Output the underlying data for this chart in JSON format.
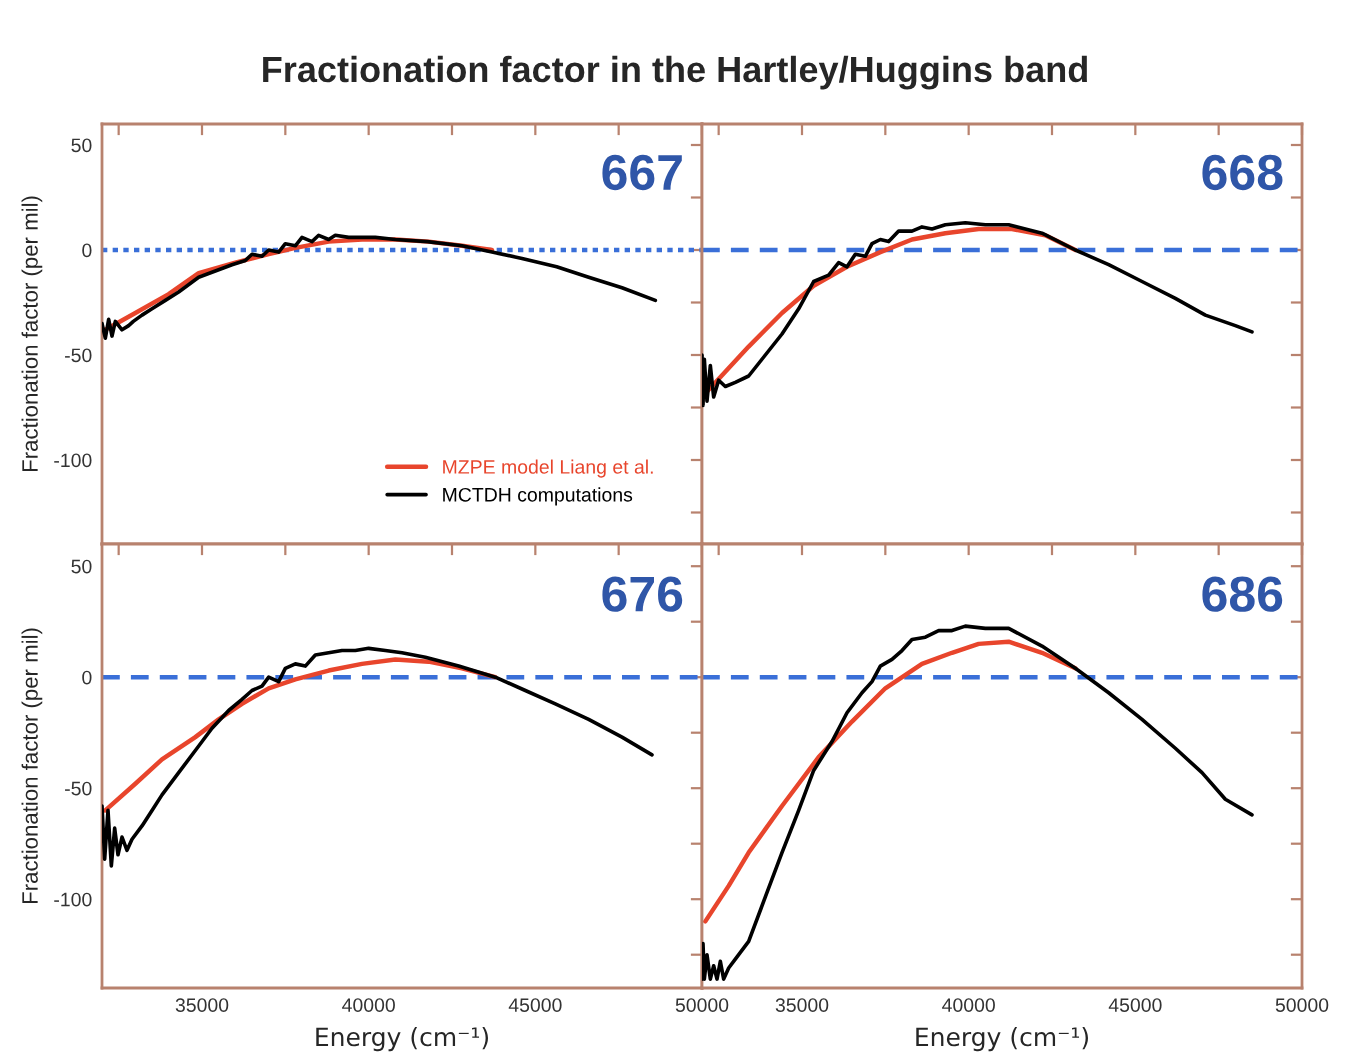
{
  "chart_data": [
    {
      "type": "line",
      "title": "Fractionation factor in the Hartley/Huggins band",
      "ylabel": "Fractionation factor (per mil)",
      "annotations": [
        "667"
      ],
      "legend": "bottom right",
      "tick_labels": "y",
      "xlim": [
        32000,
        50000
      ],
      "ylim": [
        -140,
        60
      ],
      "xticks": [
        {
          "value": 32500,
          "label": null
        },
        {
          "value": 35000,
          "label": null
        },
        {
          "value": 37500,
          "label": null
        },
        {
          "value": 40000,
          "label": null
        },
        {
          "value": 42500,
          "label": null
        },
        {
          "value": 45000,
          "label": null
        },
        {
          "value": 47500,
          "label": null
        },
        {
          "value": 50000,
          "label": null
        }
      ],
      "yticks": [
        {
          "value": -125,
          "label": null
        },
        -100,
        {
          "value": -75,
          "label": null
        },
        -50,
        {
          "value": -25,
          "label": null
        },
        0,
        {
          "value": 25,
          "label": null
        },
        50
      ],
      "ref_lines": [
        {
          "axis": "y",
          "value": 0,
          "color": "#3a6fd8",
          "line_style": "dotted"
        }
      ],
      "series": [
        {
          "name": "MZPE model Liang et al.",
          "color": "#e8452c",
          "x": [
            32100,
            33000,
            34000,
            34900,
            36000,
            37000,
            37800,
            38800,
            39800,
            40800,
            41800,
            42800,
            43700
          ],
          "values": [
            -38,
            -30,
            -21,
            -11,
            -6,
            -2,
            1,
            4,
            5,
            5,
            4,
            2,
            0
          ]
        },
        {
          "name": "MCTDH computations",
          "color": "#000000",
          "x": [
            32000,
            32100,
            32200,
            32300,
            32400,
            32600,
            32800,
            32940,
            33200,
            33500,
            33900,
            34300,
            34900,
            35400,
            35900,
            36300,
            36500,
            36800,
            37000,
            37300,
            37500,
            37800,
            38000,
            38300,
            38500,
            38800,
            39000,
            39400,
            39760,
            40200,
            40800,
            41760,
            42800,
            43700,
            44600,
            45640,
            46600,
            47600,
            48600
          ],
          "values": [
            -35,
            -42,
            -33,
            -41,
            -34,
            -38,
            -36,
            -34,
            -31,
            -28,
            -24,
            -20,
            -13,
            -10,
            -7,
            -5,
            -2,
            -3,
            0,
            -1,
            3,
            2,
            6,
            4,
            7,
            5,
            7,
            6,
            6,
            6,
            5,
            4,
            2,
            -1,
            -4,
            -8,
            -13,
            -18,
            -24
          ]
        }
      ]
    },
    {
      "type": "line",
      "annotations": [
        "668"
      ],
      "tick_labels": false,
      "xlim": [
        32000,
        50000
      ],
      "ylim": [
        -140,
        60
      ],
      "xticks": [
        {
          "value": 32500,
          "label": null
        },
        {
          "value": 35000,
          "label": null
        },
        {
          "value": 37500,
          "label": null
        },
        {
          "value": 40000,
          "label": null
        },
        {
          "value": 42500,
          "label": null
        },
        {
          "value": 45000,
          "label": null
        },
        {
          "value": 47500,
          "label": null
        },
        {
          "value": 50000,
          "label": null
        }
      ],
      "yticks": [
        {
          "value": -125,
          "label": null
        },
        {
          "value": -100,
          "label": null
        },
        {
          "value": -75,
          "label": null
        },
        {
          "value": -50,
          "label": null
        },
        {
          "value": -25,
          "label": null
        },
        {
          "value": 0,
          "label": null
        },
        {
          "value": 25,
          "label": null
        },
        {
          "value": 50,
          "label": null
        }
      ],
      "ref_lines": [
        {
          "axis": "y",
          "value": 0,
          "color": "#3a6fd8",
          "line_style": "dashed"
        }
      ],
      "series": [
        {
          "color": "#e8452c",
          "x": [
            32000,
            32700,
            33400,
            34400,
            35350,
            36350,
            37350,
            38300,
            39300,
            40300,
            41300,
            42300,
            43200
          ],
          "values": [
            -70,
            -58,
            -46,
            -30,
            -17,
            -8,
            -1,
            5,
            8,
            10,
            10,
            7,
            0
          ]
        },
        {
          "color": "#000000",
          "x": [
            32000,
            32030,
            32070,
            32150,
            32250,
            32350,
            32500,
            32700,
            33000,
            33400,
            33900,
            34400,
            34900,
            35350,
            35800,
            36100,
            36350,
            36600,
            36900,
            37100,
            37350,
            37600,
            37900,
            38300,
            38600,
            38900,
            39300,
            39900,
            40500,
            41200,
            42200,
            43200,
            44200,
            45200,
            46200,
            47100,
            48000,
            48500
          ],
          "values": [
            -50,
            -74,
            -52,
            -72,
            -55,
            -70,
            -62,
            -65,
            -63,
            -60,
            -50,
            -40,
            -28,
            -15,
            -12,
            -6,
            -8,
            -2,
            -3,
            3,
            5,
            4,
            9,
            9,
            11,
            10,
            12,
            13,
            12,
            12,
            8,
            0,
            -7,
            -15,
            -23,
            -31,
            -36,
            -39
          ]
        }
      ]
    },
    {
      "type": "line",
      "xlabel": "Energy (cm⁻¹)",
      "ylabel": "Fractionation factor (per mil)",
      "annotations": [
        "676"
      ],
      "xlim": [
        32000,
        50000
      ],
      "ylim": [
        -140,
        60
      ],
      "xticks": [
        {
          "value": 32500,
          "label": null
        },
        35000,
        {
          "value": 37500,
          "label": null
        },
        40000,
        {
          "value": 42500,
          "label": null
        },
        45000,
        {
          "value": 47500,
          "label": null
        },
        50000
      ],
      "yticks": [
        {
          "value": -125,
          "label": null
        },
        -100,
        {
          "value": -75,
          "label": null
        },
        -50,
        {
          "value": -25,
          "label": null
        },
        0,
        {
          "value": 25,
          "label": null
        },
        50
      ],
      "ref_lines": [
        {
          "axis": "y",
          "value": 0,
          "color": "#3a6fd8",
          "line_style": "dashed"
        }
      ],
      "series": [
        {
          "color": "#e8452c",
          "x": [
            32100,
            33000,
            33800,
            34800,
            35500,
            36200,
            37000,
            37800,
            38800,
            39800,
            40800,
            41800,
            42800,
            43800
          ],
          "values": [
            -60,
            -48,
            -37,
            -27,
            -19,
            -12,
            -5,
            -1,
            3,
            6,
            8,
            7,
            4,
            0
          ]
        },
        {
          "color": "#000000",
          "x": [
            32000,
            32080,
            32180,
            32280,
            32380,
            32480,
            32600,
            32750,
            32900,
            33200,
            33500,
            33800,
            34300,
            34800,
            35300,
            35800,
            36200,
            36500,
            36800,
            37000,
            37300,
            37500,
            37800,
            38100,
            38400,
            38800,
            39200,
            39600,
            40000,
            40500,
            41000,
            41700,
            42700,
            43800,
            44700,
            45600,
            46600,
            47600,
            48500
          ],
          "values": [
            -58,
            -82,
            -60,
            -85,
            -68,
            -80,
            -72,
            -78,
            -73,
            -67,
            -60,
            -53,
            -43,
            -33,
            -23,
            -15,
            -10,
            -6,
            -4,
            0,
            -2,
            4,
            6,
            5,
            10,
            11,
            12,
            12,
            13,
            12,
            11,
            9,
            5,
            0,
            -6,
            -12,
            -19,
            -27,
            -35
          ]
        }
      ]
    },
    {
      "type": "line",
      "xlabel": "Energy (cm⁻¹)",
      "annotations": [
        "686"
      ],
      "tick_labels": "x",
      "xlim": [
        32000,
        50000
      ],
      "ylim": [
        -140,
        60
      ],
      "xticks": [
        {
          "value": 32500,
          "label": null
        },
        35000,
        {
          "value": 37500,
          "label": null
        },
        40000,
        {
          "value": 42500,
          "label": null
        },
        45000,
        {
          "value": 47500,
          "label": null
        },
        50000
      ],
      "yticks": [
        {
          "value": -125,
          "label": null
        },
        {
          "value": -100,
          "label": null
        },
        {
          "value": -75,
          "label": null
        },
        {
          "value": -50,
          "label": null
        },
        {
          "value": -25,
          "label": null
        },
        {
          "value": 0,
          "label": null
        },
        {
          "value": 25,
          "label": null
        },
        {
          "value": 50,
          "label": null
        }
      ],
      "ref_lines": [
        {
          "axis": "y",
          "value": 0,
          "color": "#3a6fd8",
          "line_style": "dashed"
        }
      ],
      "series": [
        {
          "color": "#e8452c",
          "x": [
            32100,
            32800,
            33400,
            34400,
            35500,
            36500,
            37500,
            38600,
            39500,
            40300,
            41200,
            42200,
            43200
          ],
          "values": [
            -110,
            -94,
            -79,
            -58,
            -36,
            -20,
            -5,
            6,
            11,
            15,
            16,
            11,
            4
          ]
        },
        {
          "color": "#000000",
          "x": [
            32000,
            32030,
            32070,
            32150,
            32250,
            32350,
            32450,
            32550,
            32650,
            32800,
            33000,
            33400,
            33900,
            34400,
            34900,
            35350,
            35900,
            36350,
            36800,
            37100,
            37350,
            37700,
            38000,
            38300,
            38700,
            39100,
            39500,
            39900,
            40500,
            41200,
            42200,
            43200,
            44200,
            45200,
            46200,
            47000,
            47700,
            48500
          ],
          "values": [
            -136,
            -120,
            -136,
            -125,
            -136,
            -130,
            -136,
            -128,
            -136,
            -131,
            -127,
            -119,
            -99,
            -79,
            -60,
            -42,
            -29,
            -16,
            -7,
            -2,
            5,
            8,
            12,
            17,
            18,
            21,
            21,
            23,
            22,
            22,
            14,
            4,
            -7,
            -19,
            -32,
            -43,
            -55,
            -62
          ]
        }
      ]
    }
  ]
}
